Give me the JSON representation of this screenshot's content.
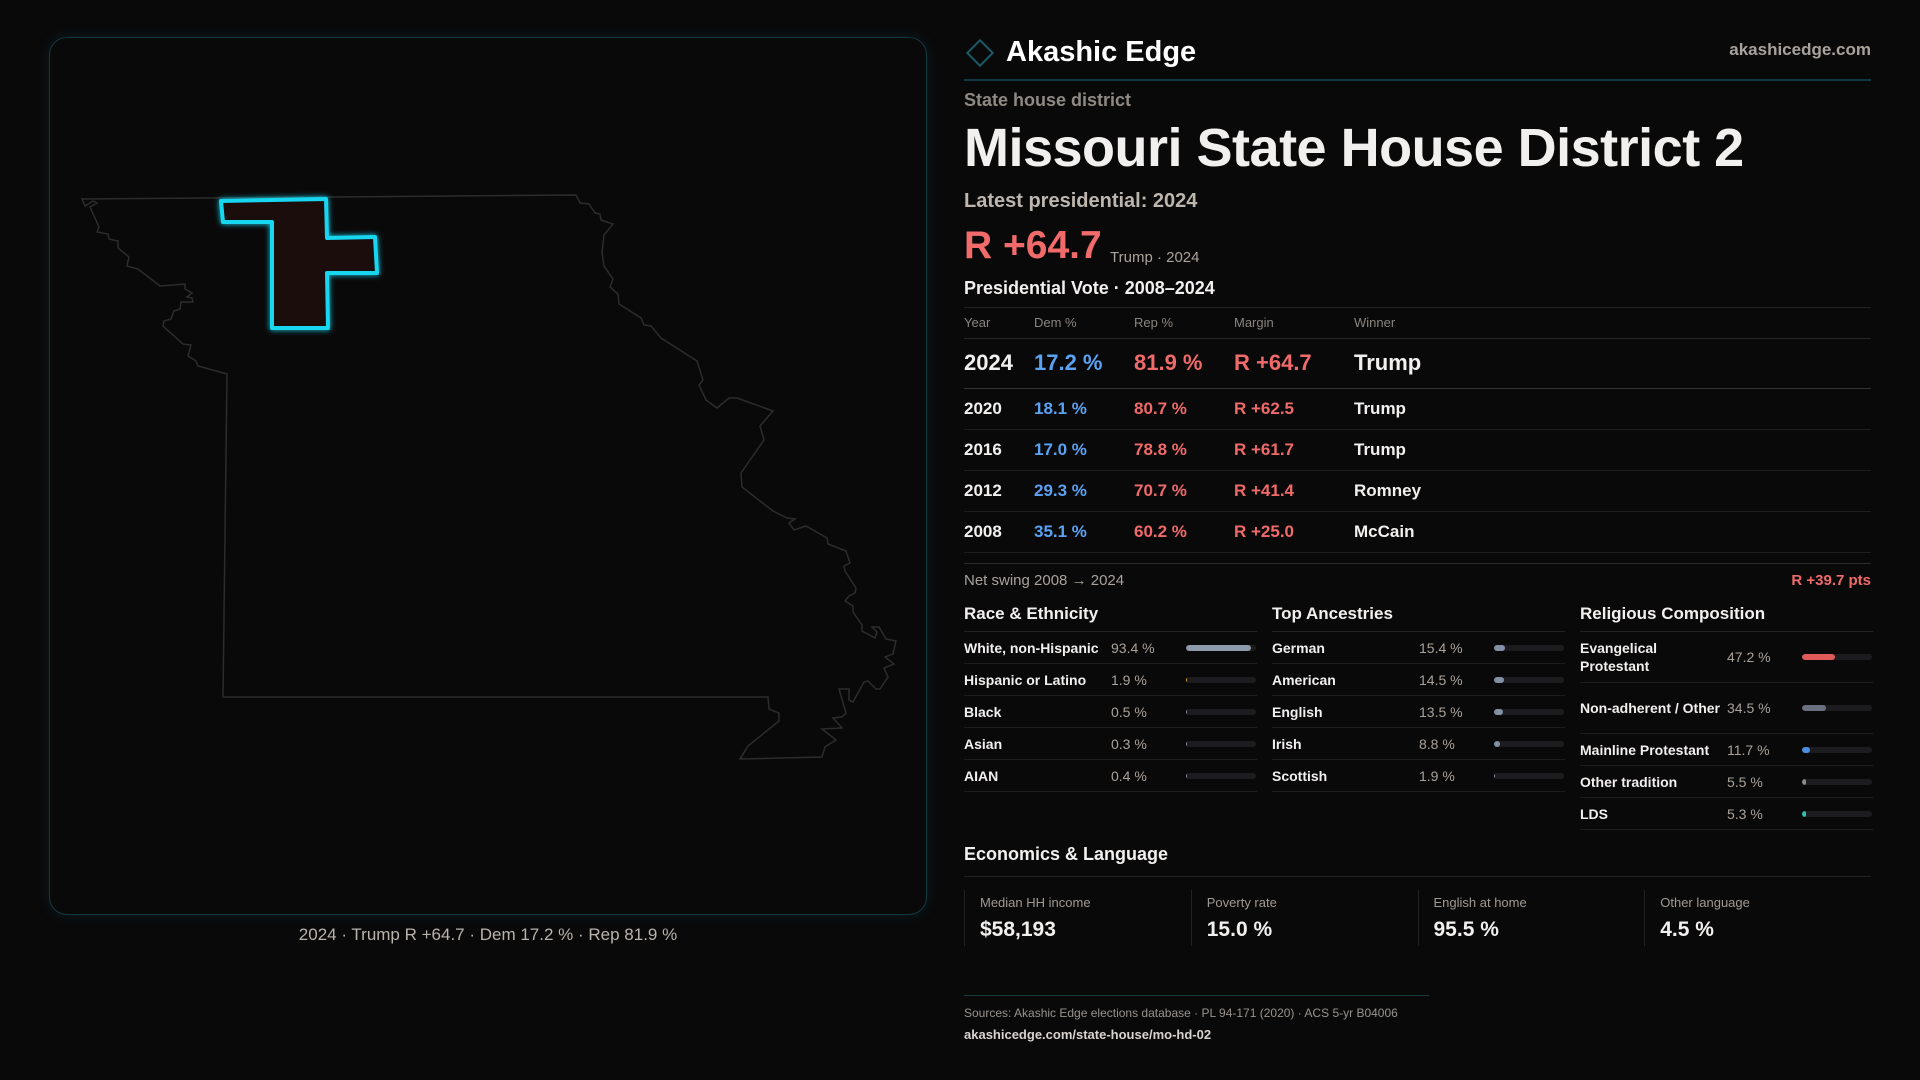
{
  "brand": {
    "name": "Akashic Edge",
    "site": "akashicedge.com",
    "logo_icon": "diamond-outline-icon"
  },
  "colors": {
    "dem": "#5aa2f2",
    "rep": "#f06a6a",
    "highlight": "#19d6f0",
    "accent": "#0f3a44"
  },
  "map": {
    "caption": "2024 · Trump R +64.7 · Dem 17.2 % · Rep 81.9 %",
    "state": "Missouri"
  },
  "header": {
    "kicker": "State house district",
    "title": "Missouri State House District 2",
    "latest": "Latest presidential: 2024",
    "margin": "R +64.7",
    "margin_sub": "Trump · 2024"
  },
  "presidential": {
    "title": "Presidential Vote · 2008–2024",
    "columns": [
      "Year",
      "Dem %",
      "Rep %",
      "Margin",
      "Winner"
    ],
    "rows": [
      {
        "year": "2024",
        "dem": "17.2 %",
        "rep": "81.9 %",
        "margin": "R +64.7",
        "winner": "Trump"
      },
      {
        "year": "2020",
        "dem": "18.1 %",
        "rep": "80.7 %",
        "margin": "R +62.5",
        "winner": "Trump"
      },
      {
        "year": "2016",
        "dem": "17.0 %",
        "rep": "78.8 %",
        "margin": "R +61.7",
        "winner": "Trump"
      },
      {
        "year": "2012",
        "dem": "29.3 %",
        "rep": "70.7 %",
        "margin": "R +41.4",
        "winner": "Romney"
      },
      {
        "year": "2008",
        "dem": "35.1 %",
        "rep": "60.2 %",
        "margin": "R +25.0",
        "winner": "McCain"
      }
    ],
    "swing_label": "Net swing 2008 → 2024",
    "swing_value": "R +39.7 pts"
  },
  "sections": [
    {
      "title": "Race & Ethnicity",
      "items": [
        {
          "label": "White, non-Hispanic",
          "value": "93.4 %",
          "pct": 93.4,
          "color": "#8e9aab"
        },
        {
          "label": "Hispanic or Latino",
          "value": "1.9 %",
          "pct": 1.9,
          "color": "#e0a030"
        },
        {
          "label": "Black",
          "value": "0.5 %",
          "pct": 0.5,
          "color": "#8e9aab"
        },
        {
          "label": "Asian",
          "value": "0.3 %",
          "pct": 0.3,
          "color": "#8e9aab"
        },
        {
          "label": "AIAN",
          "value": "0.4 %",
          "pct": 0.4,
          "color": "#8e9aab"
        }
      ]
    },
    {
      "title": "Top Ancestries",
      "items": [
        {
          "label": "German",
          "value": "15.4 %",
          "pct": 15.4,
          "color": "#8391a8"
        },
        {
          "label": "American",
          "value": "14.5 %",
          "pct": 14.5,
          "color": "#8391a8"
        },
        {
          "label": "English",
          "value": "13.5 %",
          "pct": 13.5,
          "color": "#8391a8"
        },
        {
          "label": "Irish",
          "value": "8.8 %",
          "pct": 8.8,
          "color": "#8391a8"
        },
        {
          "label": "Scottish",
          "value": "1.9 %",
          "pct": 1.9,
          "color": "#8391a8"
        }
      ]
    },
    {
      "title": "Religious Composition",
      "items": [
        {
          "label": "Evangelical Protestant",
          "value": "47.2 %",
          "pct": 47.2,
          "color": "#e05a5a"
        },
        {
          "label": "Non-adherent / Other",
          "value": "34.5 %",
          "pct": 34.5,
          "color": "#6a7080"
        },
        {
          "label": "Mainline Protestant",
          "value": "11.7 %",
          "pct": 11.7,
          "color": "#4a8ee0"
        },
        {
          "label": "Other tradition",
          "value": "5.5 %",
          "pct": 5.5,
          "color": "#8a8a8a"
        },
        {
          "label": "LDS",
          "value": "5.3 %",
          "pct": 5.3,
          "color": "#30c0b0"
        }
      ]
    }
  ],
  "economics": {
    "title": "Economics & Language",
    "stats": [
      {
        "label": "Median HH income",
        "value": "$58,193"
      },
      {
        "label": "Poverty rate",
        "value": "15.0 %"
      },
      {
        "label": "English at home",
        "value": "95.5 %"
      },
      {
        "label": "Other language",
        "value": "4.5 %"
      }
    ]
  },
  "footer": {
    "sources": "Sources: Akashic Edge elections database · PL 94-171 (2020) · ACS 5-yr B04006",
    "url": "akashicedge.com/state-house/mo-hd-02"
  }
}
